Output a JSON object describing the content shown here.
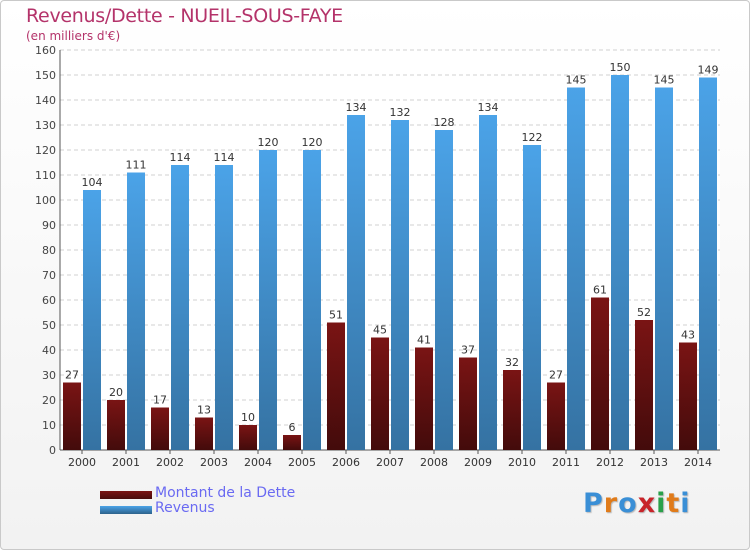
{
  "chart_data": {
    "type": "bar",
    "title": "Revenus/Dette - NUEIL-SOUS-FAYE",
    "subtitle": "(en milliers d'€)",
    "categories": [
      "2000",
      "2001",
      "2002",
      "2003",
      "2004",
      "2005",
      "2006",
      "2007",
      "2008",
      "2009",
      "2010",
      "2011",
      "2012",
      "2013",
      "2014"
    ],
    "series": [
      {
        "name": "Montant de la Dette",
        "color": "#7a1414",
        "values": [
          27,
          20,
          17,
          13,
          10,
          6,
          51,
          45,
          41,
          37,
          32,
          27,
          61,
          52,
          43
        ]
      },
      {
        "name": "Revenus",
        "color": "#4ba3e8",
        "values": [
          104,
          111,
          114,
          114,
          120,
          120,
          134,
          132,
          128,
          134,
          122,
          145,
          150,
          145,
          149
        ]
      }
    ],
    "ylim": [
      0,
      160
    ],
    "ytick_step": 10,
    "grid": true,
    "legend": "bottom-left"
  },
  "logo": {
    "letters": [
      "P",
      "r",
      "o",
      "x",
      "i",
      "t",
      "i"
    ],
    "colors": [
      "#3a8fd6",
      "#e07b1a",
      "#3a8fd6",
      "#c8242a",
      "#2aa04a",
      "#e07b1a",
      "#3a8fd6"
    ]
  }
}
